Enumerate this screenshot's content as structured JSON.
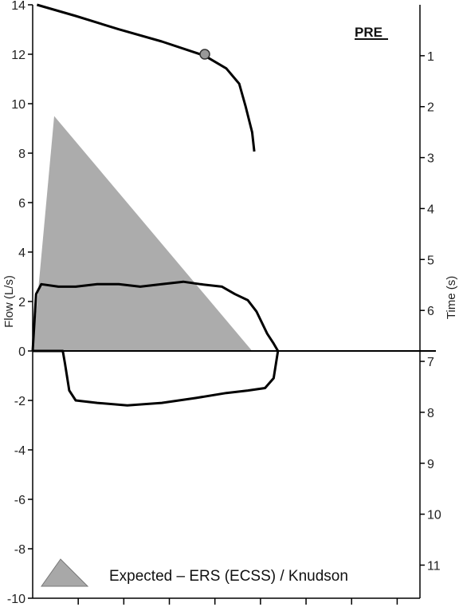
{
  "chart_data": {
    "type": "line",
    "title": "",
    "badge": "PRE",
    "y_left": {
      "label": "Flow (L/s)",
      "min": -10,
      "max": 14,
      "ticks": [
        -10,
        -8,
        -6,
        -4,
        -2,
        0,
        2,
        4,
        6,
        8,
        10,
        12,
        14
      ]
    },
    "y_right": {
      "label": "Time (s)",
      "min": 0,
      "max": 11.65,
      "ticks": [
        1,
        2,
        3,
        4,
        5,
        6,
        7,
        8,
        9,
        10,
        11
      ],
      "inverted": true
    },
    "x": {
      "min": 0,
      "max": 9.0,
      "minor_ticks": 8
    },
    "expected_triangle": {
      "name": "Expected – ERS (ECSS) / Knudson",
      "color": "#a8a8a8",
      "points": [
        [
          0,
          0
        ],
        [
          0.5,
          9.5
        ],
        [
          5.1,
          0
        ]
      ]
    },
    "flow_volume_loop": {
      "color": "#000000",
      "expiratory": [
        [
          0.0,
          0.0
        ],
        [
          0.08,
          2.3
        ],
        [
          0.2,
          2.7
        ],
        [
          0.6,
          2.6
        ],
        [
          1.0,
          2.6
        ],
        [
          1.5,
          2.7
        ],
        [
          2.0,
          2.7
        ],
        [
          2.5,
          2.6
        ],
        [
          3.0,
          2.7
        ],
        [
          3.5,
          2.8
        ],
        [
          3.9,
          2.7
        ],
        [
          4.4,
          2.6
        ],
        [
          4.7,
          2.3
        ],
        [
          5.0,
          2.05
        ],
        [
          5.2,
          1.6
        ],
        [
          5.45,
          0.7
        ],
        [
          5.6,
          0.3
        ],
        [
          5.7,
          0.0
        ]
      ],
      "inspiratory": [
        [
          0.0,
          0.0
        ],
        [
          0.7,
          0.0
        ],
        [
          0.75,
          -0.5
        ],
        [
          0.85,
          -1.6
        ],
        [
          1.0,
          -2.0
        ],
        [
          1.5,
          -2.1
        ],
        [
          2.2,
          -2.2
        ],
        [
          3.0,
          -2.1
        ],
        [
          3.8,
          -1.9
        ],
        [
          4.5,
          -1.7
        ],
        [
          5.0,
          -1.6
        ],
        [
          5.4,
          -1.5
        ],
        [
          5.6,
          -1.1
        ],
        [
          5.7,
          0.0
        ]
      ]
    },
    "volume_time_curve": {
      "axis": "time",
      "color": "#000000",
      "points": [
        [
          0.1,
          0.0
        ],
        [
          1.0,
          0.22
        ],
        [
          2.0,
          0.48
        ],
        [
          3.0,
          0.72
        ],
        [
          4.0,
          1.0
        ],
        [
          4.5,
          1.25
        ],
        [
          4.8,
          1.55
        ],
        [
          4.95,
          2.0
        ],
        [
          5.1,
          2.5
        ],
        [
          5.15,
          2.88
        ]
      ]
    },
    "marker": {
      "x": 4.0,
      "y": 12.0,
      "color": "#999999"
    },
    "legend": {
      "label": "Expected – ERS (ECSS) / Knudson",
      "position": "bottom-left"
    }
  }
}
